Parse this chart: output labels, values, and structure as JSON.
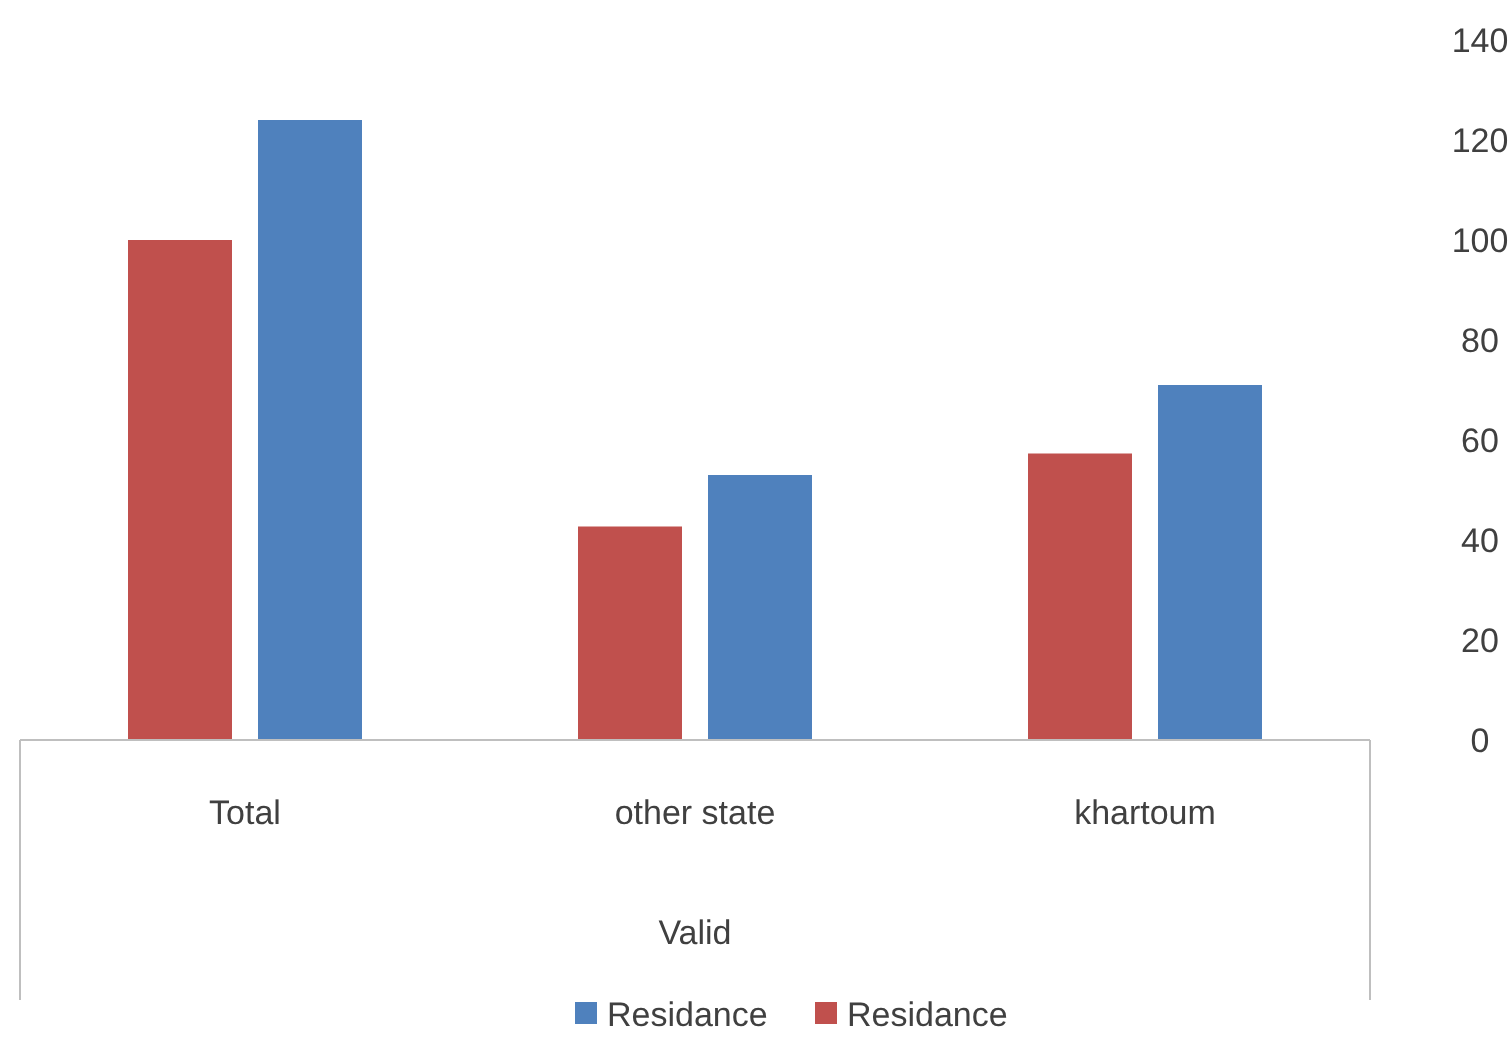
{
  "chart_data": {
    "type": "bar",
    "xlabel": "Valid",
    "categories": [
      "Total",
      "other state",
      "khartoum"
    ],
    "series": [
      {
        "name": "Residance",
        "color": "#c0504d",
        "values": [
          100,
          42.7,
          57.3
        ]
      },
      {
        "name": "Residance",
        "color": "#4f81bd",
        "values": [
          124,
          53,
          71
        ]
      }
    ],
    "ylim": [
      0,
      140
    ],
    "yticks": [
      0,
      20,
      40,
      60,
      80,
      100,
      120,
      140
    ],
    "legend": "bottom",
    "grid": false
  }
}
